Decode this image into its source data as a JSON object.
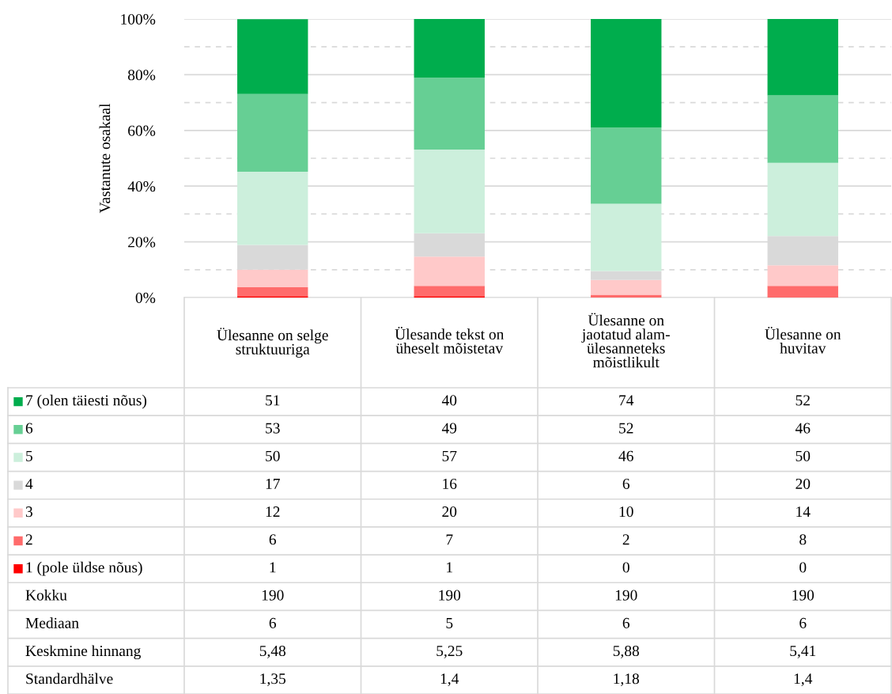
{
  "chart_data": {
    "type": "bar",
    "stacked": true,
    "ylabel": "Vastanute osakaal",
    "categories": [
      "Ülesanne on selge\nstruktuuriga",
      "Ülesande tekst on\nüheselt mõistetav",
      "Ülesanne on\njaotatud alam-\nülesanneteks\nmõistlikult",
      "Ülesanne on\nhuvitav"
    ],
    "series": [
      {
        "name": "1 (pole üldse nõus)",
        "color": "#ff0000",
        "values": [
          0.5,
          0.5,
          0,
          0
        ]
      },
      {
        "name": "2",
        "color": "#ff6b6b",
        "values": [
          3.2,
          3.7,
          1.0,
          4.2
        ]
      },
      {
        "name": "3",
        "color": "#ffc9c9",
        "values": [
          6.3,
          10.5,
          5.3,
          7.4
        ]
      },
      {
        "name": "4",
        "color": "#d9d9d9",
        "values": [
          8.9,
          8.4,
          3.2,
          10.5
        ]
      },
      {
        "name": "5",
        "color": "#ccefdc",
        "values": [
          26.3,
          30.0,
          24.2,
          26.3
        ]
      },
      {
        "name": "6",
        "color": "#66cf94",
        "values": [
          27.9,
          25.8,
          27.4,
          24.2
        ]
      },
      {
        "name": "7 (olen täiesti nõus)",
        "color": "#00ad4d",
        "values": [
          26.8,
          21.1,
          38.9,
          27.4
        ]
      }
    ],
    "ylim": [
      0,
      100
    ],
    "yticks": [
      {
        "value": 0,
        "label": "0%"
      },
      {
        "value": 10,
        "label": null
      },
      {
        "value": 20,
        "label": "20%"
      },
      {
        "value": 30,
        "label": null
      },
      {
        "value": 40,
        "label": "40%"
      },
      {
        "value": 50,
        "label": null
      },
      {
        "value": 60,
        "label": "60%"
      },
      {
        "value": 70,
        "label": null
      },
      {
        "value": 80,
        "label": "80%"
      },
      {
        "value": 90,
        "label": null
      },
      {
        "value": 100,
        "label": "100%"
      }
    ],
    "grid": "y",
    "legend": "bottom",
    "annotations": [
      "51",
      "40",
      "74",
      "52",
      "53",
      "49",
      "52",
      "46",
      "50",
      "57",
      "46",
      "50",
      "17",
      "16",
      "6",
      "20",
      "12",
      "20",
      "10",
      "14",
      "6",
      "7",
      "2",
      "8",
      "1",
      "1",
      "0",
      "0",
      "Kokku",
      "190",
      "190",
      "190",
      "190",
      "Mediaan",
      "6",
      "5",
      "6",
      "6",
      "Keskmine hinnang",
      "5,48",
      "5,25",
      "5,88",
      "5,41",
      "Standardhälve",
      "1,35",
      "1,4",
      "1,18",
      "1,4"
    ]
  }
}
